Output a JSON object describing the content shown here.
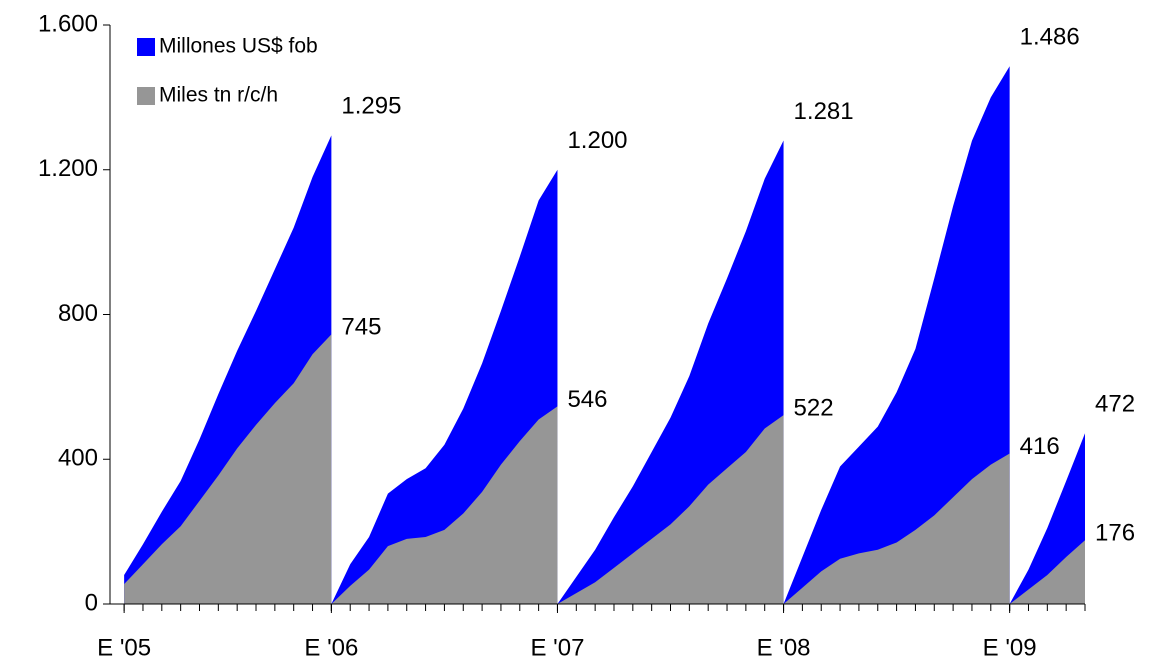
{
  "chart_data": {
    "type": "area",
    "x": [
      0,
      1,
      2,
      3,
      4,
      5,
      6,
      7,
      8,
      9,
      10,
      11,
      11,
      12,
      13,
      14,
      15,
      16,
      17,
      18,
      19,
      20,
      21,
      22,
      23,
      23,
      24,
      25,
      26,
      27,
      28,
      29,
      30,
      31,
      32,
      33,
      34,
      35,
      35,
      36,
      37,
      38,
      39,
      40,
      41,
      42,
      43,
      44,
      45,
      46,
      47,
      47,
      48,
      49,
      50,
      51
    ],
    "xlim": [
      -0.75,
      51
    ],
    "xticks": [
      {
        "value": 0,
        "label": "E '05"
      },
      {
        "value": 11,
        "label": "E '06"
      },
      {
        "value": 23,
        "label": "E '07"
      },
      {
        "value": 35,
        "label": "E '08"
      },
      {
        "value": 47,
        "label": "E '09"
      }
    ],
    "ylim": [
      0,
      1600
    ],
    "yticks": [
      0,
      400,
      800,
      {
        "value": 1200,
        "label": "1.200"
      },
      {
        "value": 1600,
        "label": "1.600"
      }
    ],
    "legend": "top-left",
    "series": [
      {
        "name": "Millones US$ fob",
        "color": "#0000ff",
        "values": [
          80,
          165,
          255,
          340,
          455,
          580,
          700,
          810,
          925,
          1040,
          1180,
          1295,
          0,
          110,
          185,
          305,
          345,
          375,
          440,
          540,
          665,
          810,
          960,
          1115,
          1200,
          0,
          75,
          150,
          240,
          325,
          420,
          515,
          630,
          775,
          900,
          1030,
          1175,
          1281,
          0,
          130,
          260,
          380,
          435,
          490,
          585,
          705,
          900,
          1100,
          1280,
          1400,
          1486,
          0,
          95,
          210,
          340,
          472
        ],
        "value_labels": [
          null,
          null,
          null,
          null,
          null,
          null,
          null,
          null,
          null,
          null,
          null,
          "1.295",
          null,
          null,
          null,
          null,
          null,
          null,
          null,
          null,
          null,
          null,
          null,
          null,
          "1.200",
          null,
          null,
          null,
          null,
          null,
          null,
          null,
          null,
          null,
          null,
          null,
          null,
          "1.281",
          null,
          null,
          null,
          null,
          null,
          null,
          null,
          null,
          null,
          null,
          null,
          null,
          "1.486",
          null,
          null,
          null,
          null,
          "472"
        ]
      },
      {
        "name": "Miles tn r/c/h",
        "color": "#969696",
        "values": [
          55,
          110,
          165,
          215,
          285,
          355,
          430,
          495,
          555,
          610,
          690,
          745,
          0,
          50,
          95,
          160,
          180,
          185,
          205,
          250,
          310,
          385,
          450,
          510,
          546,
          0,
          30,
          60,
          100,
          140,
          180,
          220,
          270,
          330,
          375,
          420,
          485,
          522,
          0,
          45,
          90,
          125,
          140,
          150,
          170,
          205,
          245,
          295,
          345,
          385,
          416,
          0,
          40,
          80,
          130,
          176
        ],
        "value_labels": [
          null,
          null,
          null,
          null,
          null,
          null,
          null,
          null,
          null,
          null,
          null,
          "745",
          null,
          null,
          null,
          null,
          null,
          null,
          null,
          null,
          null,
          null,
          null,
          null,
          "546",
          null,
          null,
          null,
          null,
          null,
          null,
          null,
          null,
          null,
          null,
          null,
          null,
          "522",
          null,
          null,
          null,
          null,
          null,
          null,
          null,
          null,
          null,
          null,
          null,
          null,
          "416",
          null,
          null,
          null,
          null,
          "176"
        ]
      }
    ]
  }
}
